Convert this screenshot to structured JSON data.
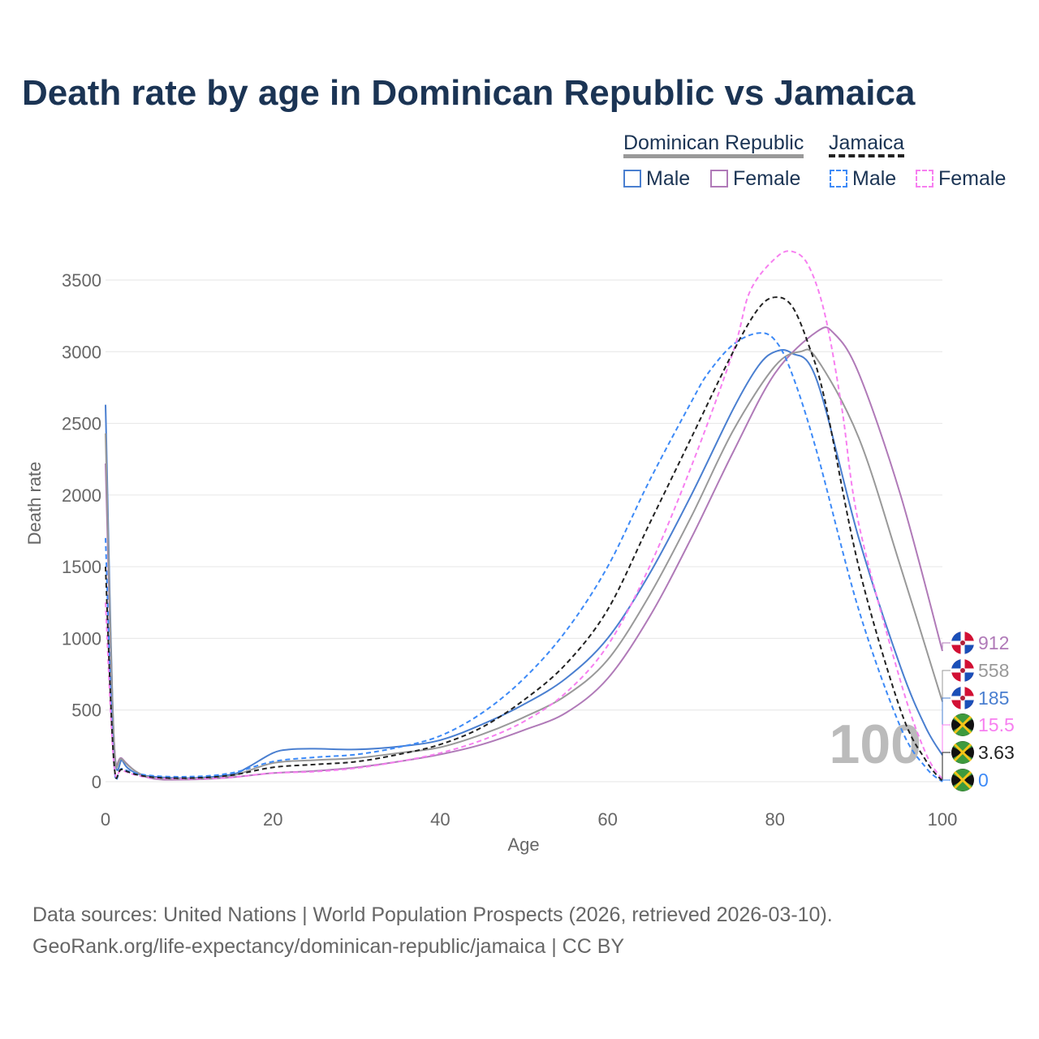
{
  "title": "Death rate by age in Dominican Republic vs Jamaica",
  "legend": {
    "group1": "Dominican Republic",
    "group2": "Jamaica",
    "male": "Male",
    "female": "Female"
  },
  "source_line1": "Data sources: United Nations | World Population Prospects (2026, retrieved 2026-03-10).",
  "source_line2": "GeoRank.org/life-expectancy/dominican-republic/jamaica | CC BY",
  "watermark": "100",
  "chart_data": {
    "type": "line",
    "xlabel": "Age",
    "ylabel": "Death rate",
    "xlim": [
      0,
      100
    ],
    "ylim": [
      0,
      3700
    ],
    "xticks": [
      0,
      20,
      40,
      60,
      80,
      100
    ],
    "yticks": [
      0,
      500,
      1000,
      1500,
      2000,
      2500,
      3000,
      3500
    ],
    "series": [
      {
        "name": "Dominican Republic Male",
        "color": "#4a7fd0",
        "dash": false,
        "end_label": "185",
        "flag": "dr",
        "x": [
          0,
          1,
          2,
          3,
          5,
          10,
          15,
          17,
          20,
          22,
          25,
          30,
          35,
          40,
          45,
          50,
          55,
          60,
          65,
          70,
          75,
          78,
          80,
          82,
          85,
          90,
          95,
          98,
          100
        ],
        "y": [
          2630,
          300,
          150,
          80,
          40,
          25,
          50,
          100,
          200,
          225,
          230,
          225,
          245,
          290,
          400,
          540,
          720,
          1000,
          1450,
          2000,
          2600,
          2900,
          3000,
          2990,
          2800,
          1700,
          800,
          380,
          185
        ]
      },
      {
        "name": "Dominican Republic Female",
        "color": "#b07ab8",
        "dash": false,
        "end_label": "912",
        "flag": "dr",
        "x": [
          0,
          1,
          2,
          5,
          10,
          15,
          20,
          25,
          30,
          35,
          40,
          45,
          50,
          55,
          60,
          65,
          70,
          75,
          80,
          85,
          87,
          90,
          95,
          100
        ],
        "y": [
          2220,
          300,
          160,
          30,
          15,
          30,
          60,
          75,
          100,
          140,
          190,
          260,
          360,
          480,
          720,
          1150,
          1700,
          2300,
          2850,
          3140,
          3130,
          2850,
          2000,
          912
        ]
      },
      {
        "name": "Dominican Republic",
        "color": "#999999",
        "dash": false,
        "end_label": "558",
        "flag": "dr",
        "x": [
          0,
          1,
          2,
          5,
          10,
          15,
          20,
          25,
          30,
          35,
          40,
          45,
          50,
          55,
          60,
          65,
          70,
          75,
          80,
          83,
          85,
          90,
          95,
          100
        ],
        "y": [
          2430,
          300,
          155,
          35,
          20,
          40,
          130,
          150,
          165,
          200,
          240,
          330,
          450,
          600,
          850,
          1300,
          1850,
          2450,
          2900,
          3000,
          2950,
          2400,
          1500,
          558
        ]
      },
      {
        "name": "Jamaica Male",
        "color": "#3d8af7",
        "dash": true,
        "end_label": "0",
        "flag": "jm",
        "x": [
          0,
          1,
          2,
          5,
          10,
          15,
          20,
          25,
          30,
          35,
          40,
          45,
          50,
          55,
          60,
          65,
          70,
          72,
          75,
          78,
          80,
          82,
          85,
          90,
          95,
          98,
          100
        ],
        "y": [
          1700,
          140,
          90,
          45,
          35,
          60,
          140,
          170,
          190,
          240,
          320,
          480,
          720,
          1050,
          1500,
          2100,
          2650,
          2850,
          3050,
          3130,
          3080,
          2850,
          2300,
          1200,
          380,
          100,
          0
        ]
      },
      {
        "name": "Jamaica Female",
        "color": "#f77ff0",
        "dash": true,
        "end_label": "15.5",
        "flag": "jm",
        "x": [
          0,
          1,
          2,
          5,
          10,
          15,
          20,
          25,
          30,
          35,
          40,
          45,
          50,
          55,
          60,
          65,
          70,
          75,
          77,
          80,
          82,
          84,
          86,
          88,
          90,
          95,
          98,
          100
        ],
        "y": [
          1250,
          130,
          80,
          30,
          20,
          30,
          60,
          70,
          95,
          140,
          200,
          290,
          420,
          620,
          950,
          1500,
          2200,
          3000,
          3420,
          3650,
          3700,
          3600,
          3250,
          2600,
          1800,
          700,
          200,
          15.5
        ]
      },
      {
        "name": "Jamaica",
        "color": "#222222",
        "dash": true,
        "end_label": "3.63",
        "flag": "jm",
        "x": [
          0,
          1,
          2,
          5,
          10,
          15,
          20,
          25,
          30,
          35,
          40,
          45,
          50,
          55,
          60,
          65,
          70,
          75,
          78,
          80,
          82,
          84,
          86,
          90,
          95,
          98,
          100
        ],
        "y": [
          1500,
          140,
          85,
          35,
          25,
          45,
          100,
          120,
          140,
          190,
          260,
          380,
          570,
          820,
          1200,
          1800,
          2400,
          3000,
          3300,
          3380,
          3320,
          3050,
          2650,
          1500,
          500,
          150,
          3.63
        ]
      }
    ]
  }
}
